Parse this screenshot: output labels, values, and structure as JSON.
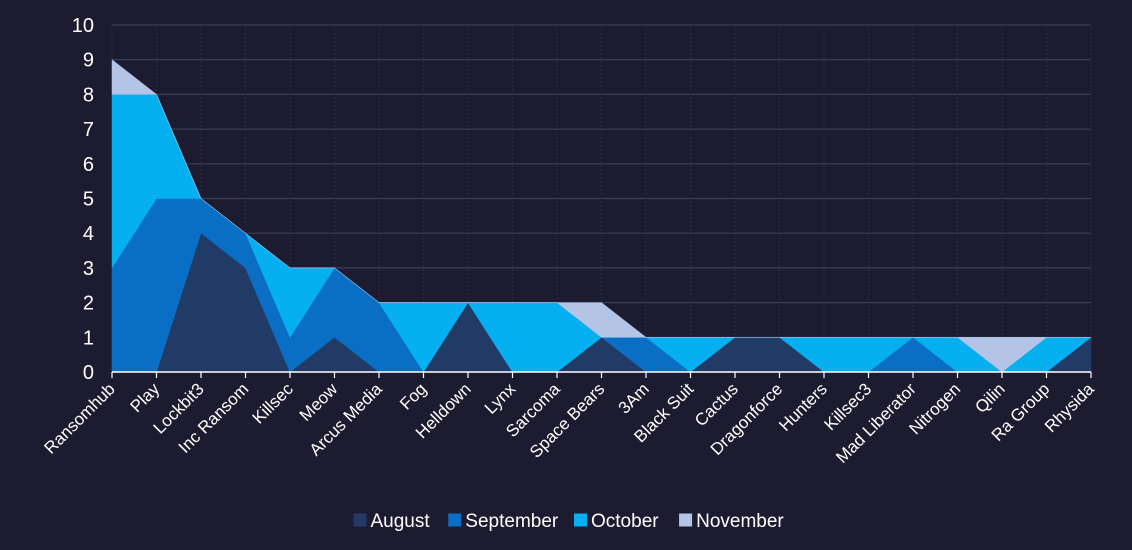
{
  "chart_data": {
    "type": "area",
    "stacked": true,
    "categories": [
      "Ransomhub",
      "Play",
      "Lockbit3",
      "Inc Ransom",
      "Killsec",
      "Meow",
      "Arcus Media",
      "Fog",
      "Helldown",
      "Lynx",
      "Sarcoma",
      "Space Bears",
      "3Am",
      "Black Suit",
      "Cactus",
      "Dragonforce",
      "Hunters",
      "Killsec3",
      "Mad Liberator",
      "Nitrogen",
      "Qilin",
      "Ra Group",
      "Rhysida"
    ],
    "series": [
      {
        "name": "August",
        "color": "#213a66",
        "values": [
          0,
          0,
          4,
          3,
          0,
          1,
          0,
          0,
          2,
          0,
          0,
          1,
          0,
          0,
          1,
          1,
          0,
          0,
          0,
          0,
          0,
          0,
          1
        ]
      },
      {
        "name": "September",
        "color": "#0a6fc4",
        "values": [
          3,
          5,
          1,
          1,
          1,
          2,
          2,
          0,
          0,
          0,
          0,
          0,
          1,
          0,
          0,
          0,
          0,
          0,
          1,
          0,
          0,
          0,
          0
        ]
      },
      {
        "name": "October",
        "color": "#06b0f0",
        "values": [
          5,
          3,
          0,
          0,
          2,
          0,
          0,
          2,
          0,
          2,
          2,
          0,
          0,
          1,
          0,
          0,
          1,
          1,
          0,
          1,
          0,
          1,
          0
        ]
      },
      {
        "name": "November",
        "color": "#b3c4e6",
        "values": [
          1,
          0,
          0,
          0,
          0,
          0,
          0,
          0,
          0,
          0,
          0,
          1,
          0,
          0,
          0,
          0,
          0,
          0,
          0,
          0,
          1,
          0,
          0
        ]
      }
    ],
    "ylim": [
      0,
      10
    ],
    "yticks": [
      "0",
      "1",
      "2",
      "3",
      "4",
      "5",
      "6",
      "7",
      "8",
      "9",
      "10"
    ],
    "grid": true,
    "legend_position": "bottom"
  }
}
